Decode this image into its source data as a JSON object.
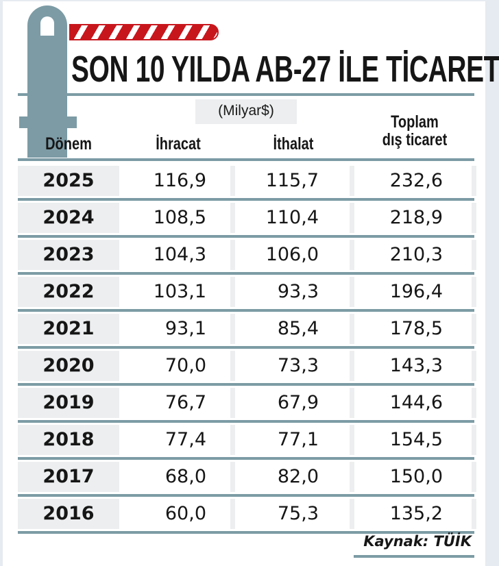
{
  "title": "SON 10 YILDA AB-27 İLE TİCARET",
  "unit": "(Milyar$)",
  "source": "Kaynak: TÜİK",
  "colors": {
    "accent": "#7c9ba5",
    "barrier_red": "#c8161d"
  },
  "chart_data": {
    "type": "table",
    "title": "SON 10 YILDA AB-27 İLE TİCARET",
    "columns": [
      "Dönem",
      "İhracat",
      "İthalat",
      "Toplam dış ticaret"
    ],
    "header_lines": {
      "c3a": "Toplam",
      "c3b": "dış ticaret"
    },
    "rows": [
      [
        "2025",
        "116,9",
        "115,7",
        "232,6"
      ],
      [
        "2024",
        "108,5",
        "110,4",
        "218,9"
      ],
      [
        "2023",
        "104,3",
        "106,0",
        "210,3"
      ],
      [
        "2022",
        "103,1",
        "93,3",
        "196,4"
      ],
      [
        "2021",
        "93,1",
        "85,4",
        "178,5"
      ],
      [
        "2020",
        "70,0",
        "73,3",
        "143,3"
      ],
      [
        "2019",
        "76,7",
        "67,9",
        "144,6"
      ],
      [
        "2018",
        "77,4",
        "77,1",
        "154,5"
      ],
      [
        "2017",
        "68,0",
        "82,0",
        "150,0"
      ],
      [
        "2016",
        "60,0",
        "75,3",
        "135,2"
      ]
    ]
  }
}
